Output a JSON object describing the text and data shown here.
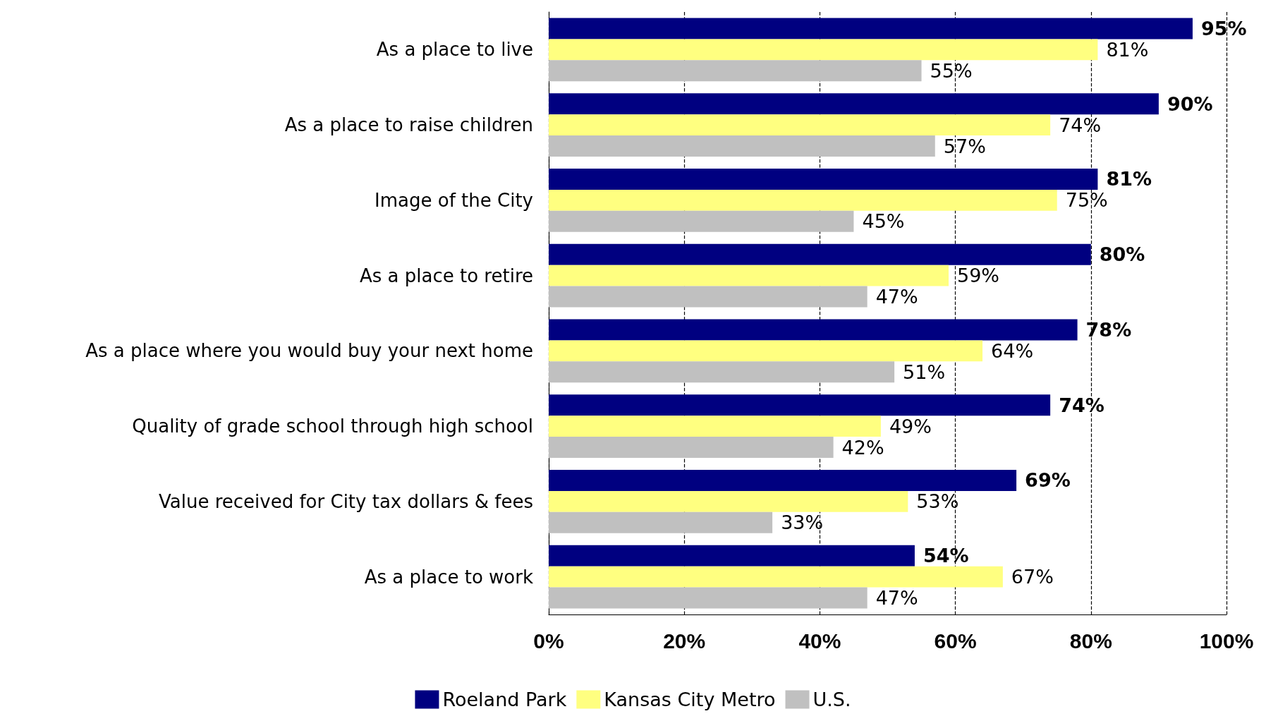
{
  "chart_data": {
    "type": "bar",
    "orientation": "horizontal",
    "categories": [
      "As a place to live",
      "As a place to raise children",
      "Image of the City",
      "As a place to retire",
      "As a place where you would buy your next home",
      "Quality of grade school through high school",
      "Value received for City tax dollars & fees",
      "As a place to work"
    ],
    "series": [
      {
        "name": "Roeland Park",
        "color": "#000080",
        "values": [
          95,
          90,
          81,
          80,
          78,
          74,
          69,
          54
        ],
        "value_labels": [
          "95%",
          "90%",
          "81%",
          "80%",
          "78%",
          "74%",
          "69%",
          "54%"
        ]
      },
      {
        "name": "Kansas City Metro",
        "color": "#ffff80",
        "values": [
          81,
          74,
          75,
          59,
          64,
          49,
          53,
          67
        ],
        "value_labels": [
          "81%",
          "74%",
          "75%",
          "59%",
          "64%",
          "49%",
          "53%",
          "67%"
        ]
      },
      {
        "name": "U.S.",
        "color": "#c0c0c0",
        "values": [
          55,
          57,
          45,
          47,
          51,
          42,
          33,
          47
        ],
        "value_labels": [
          "55%",
          "57%",
          "45%",
          "47%",
          "51%",
          "42%",
          "33%",
          "47%"
        ]
      }
    ],
    "xlim": [
      0,
      100
    ],
    "xticks": [
      {
        "value": 0,
        "label": "0%"
      },
      {
        "value": 20,
        "label": "20%"
      },
      {
        "value": 40,
        "label": "40%"
      },
      {
        "value": 60,
        "label": "60%"
      },
      {
        "value": 80,
        "label": "80%"
      },
      {
        "value": 100,
        "label": "100%"
      }
    ],
    "grid": "x",
    "line_style": "dashed",
    "legend": "bottom"
  }
}
